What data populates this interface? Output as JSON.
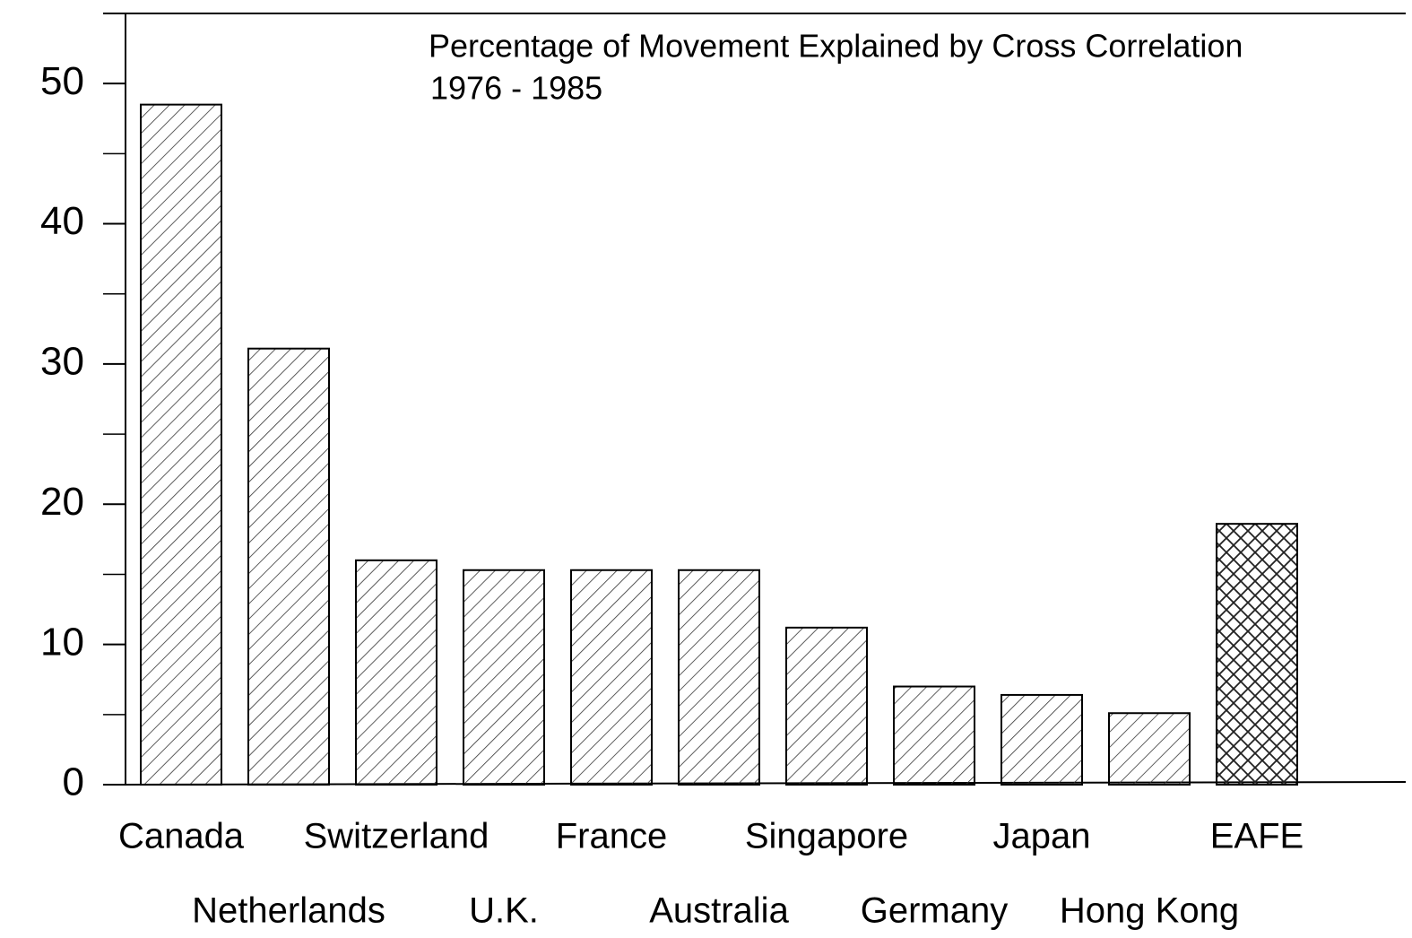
{
  "chart_data": {
    "type": "bar",
    "title": "Percentage of Movement Explained by Cross Correlation",
    "subtitle": "1976 - 1985",
    "categories": [
      "Canada",
      "Netherlands",
      "Switzerland",
      "U.K.",
      "France",
      "Australia",
      "Singapore",
      "Germany",
      "Japan",
      "Hong Kong",
      "EAFE"
    ],
    "values": [
      48.5,
      31.1,
      16.0,
      15.3,
      15.3,
      15.3,
      11.2,
      7.0,
      6.4,
      5.1,
      18.6
    ],
    "hatches": [
      "diagonal",
      "diagonal",
      "diagonal",
      "diagonal",
      "diagonal",
      "diagonal",
      "diagonal",
      "diagonal",
      "diagonal",
      "diagonal",
      "cross"
    ],
    "color": "#000000",
    "ylim": [
      0,
      55
    ],
    "yticks": [
      0,
      10,
      20,
      30,
      40,
      50
    ],
    "minor_yticks": [
      5,
      15,
      25,
      35,
      45
    ],
    "grid": false
  }
}
